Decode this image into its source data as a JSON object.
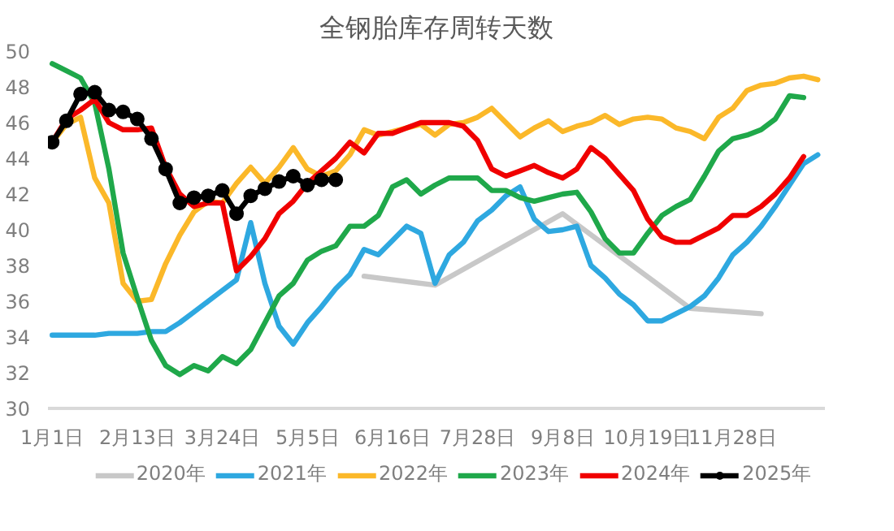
{
  "chart_data": {
    "type": "line",
    "title": "全钢胎库存周转天数",
    "categories": [
      "1月1日",
      null,
      null,
      null,
      null,
      null,
      "2月13日",
      null,
      null,
      null,
      null,
      null,
      "3月24日",
      null,
      null,
      null,
      null,
      null,
      "5月5日",
      null,
      null,
      null,
      null,
      null,
      "6月16日",
      null,
      null,
      null,
      null,
      null,
      "7月28日",
      null,
      null,
      null,
      null,
      null,
      "9月8日",
      null,
      null,
      null,
      null,
      null,
      "10月19日",
      null,
      null,
      null,
      null,
      null,
      "11月28日",
      null,
      null,
      null,
      null,
      null,
      null
    ],
    "ylim": [
      30,
      50
    ],
    "yticks": [
      30,
      32,
      34,
      36,
      38,
      40,
      42,
      44,
      46,
      48,
      50
    ],
    "grid": false,
    "legend": "bottom",
    "marker": "none",
    "line_style": "solid",
    "series": [
      {
        "name": "2020年",
        "color": "#c8c8c8",
        "values": [
          null,
          null,
          null,
          null,
          null,
          null,
          null,
          null,
          null,
          null,
          null,
          null,
          null,
          null,
          null,
          null,
          null,
          null,
          null,
          null,
          null,
          null,
          37.4,
          null,
          null,
          null,
          null,
          36.9,
          null,
          null,
          null,
          null,
          null,
          null,
          null,
          null,
          40.9,
          null,
          null,
          null,
          null,
          null,
          null,
          null,
          null,
          35.6,
          null,
          null,
          null,
          null,
          35.3,
          null,
          null,
          null,
          null
        ]
      },
      {
        "name": "2021年",
        "color": "#2ea8e0",
        "values": [
          34.1,
          34.1,
          34.1,
          34.1,
          34.2,
          34.2,
          34.2,
          34.3,
          34.3,
          34.8,
          35.4,
          36.0,
          36.6,
          37.2,
          40.4,
          37.0,
          34.6,
          33.6,
          34.8,
          35.7,
          36.7,
          37.5,
          38.9,
          38.6,
          39.4,
          40.2,
          39.8,
          37.0,
          38.6,
          39.3,
          40.5,
          41.1,
          41.9,
          42.4,
          40.6,
          39.9,
          40.0,
          40.2,
          38.0,
          37.3,
          36.4,
          35.8,
          34.9,
          34.9,
          35.3,
          35.7,
          36.3,
          37.3,
          38.6,
          39.3,
          40.2,
          41.3,
          42.5,
          43.7,
          44.2
        ]
      },
      {
        "name": "2022年",
        "color": "#fbb829",
        "values": [
          44.9,
          45.9,
          46.3,
          42.9,
          41.5,
          37.0,
          36.0,
          36.1,
          38.1,
          39.7,
          41.0,
          41.6,
          41.5,
          42.6,
          43.5,
          42.6,
          43.5,
          44.6,
          43.4,
          43.0,
          43.3,
          44.2,
          45.6,
          45.3,
          45.5,
          45.7,
          45.9,
          45.3,
          45.9,
          46.0,
          46.3,
          46.8,
          46.0,
          45.2,
          45.7,
          46.1,
          45.5,
          45.8,
          46.0,
          46.4,
          45.9,
          46.2,
          46.3,
          46.2,
          45.7,
          45.5,
          45.1,
          46.3,
          46.8,
          47.8,
          48.1,
          48.2,
          48.5,
          48.6,
          48.4
        ]
      },
      {
        "name": "2023年",
        "color": "#1fa84a",
        "values": [
          49.3,
          48.9,
          48.5,
          47.1,
          43.4,
          38.7,
          36.2,
          33.8,
          32.4,
          31.9,
          32.4,
          32.1,
          32.9,
          32.5,
          33.3,
          34.8,
          36.3,
          37.0,
          38.3,
          38.8,
          39.1,
          40.2,
          40.2,
          40.8,
          42.4,
          42.8,
          42.0,
          42.5,
          42.9,
          42.9,
          42.9,
          42.2,
          42.2,
          41.8,
          41.6,
          41.8,
          42.0,
          42.1,
          41.0,
          39.5,
          38.7,
          38.7,
          39.8,
          40.8,
          41.3,
          41.7,
          43.0,
          44.4,
          45.1,
          45.3,
          45.6,
          46.2,
          47.5,
          47.4,
          null
        ]
      },
      {
        "name": "2024年",
        "color": "#f00000",
        "values": [
          44.9,
          46.2,
          46.7,
          47.3,
          46.0,
          45.6,
          45.6,
          45.7,
          43.5,
          42.0,
          41.3,
          41.5,
          41.5,
          37.7,
          38.5,
          39.5,
          40.9,
          41.6,
          42.6,
          43.3,
          44.0,
          44.9,
          44.3,
          45.4,
          45.4,
          45.7,
          46.0,
          46.0,
          46.0,
          45.8,
          45.0,
          43.4,
          43.0,
          43.3,
          43.6,
          43.2,
          42.9,
          43.4,
          44.6,
          44.0,
          43.1,
          42.2,
          40.6,
          39.6,
          39.3,
          39.3,
          39.7,
          40.1,
          40.8,
          40.8,
          41.3,
          42.0,
          42.9,
          44.1,
          null
        ]
      },
      {
        "name": "2025年",
        "color": "#000000",
        "marker": "circle",
        "values": [
          44.9,
          46.1,
          47.6,
          47.7,
          46.7,
          46.6,
          46.2,
          45.1,
          43.4,
          41.5,
          41.8,
          41.9,
          42.2,
          40.9,
          41.9,
          42.3,
          42.7,
          43.0,
          42.5,
          42.8,
          42.8,
          null,
          null,
          null,
          null,
          null,
          null,
          null,
          null,
          null,
          null,
          null,
          null,
          null,
          null,
          null,
          null,
          null,
          null,
          null,
          null,
          null,
          null,
          null,
          null,
          null,
          null,
          null,
          null,
          null,
          null,
          null,
          null,
          null,
          null
        ]
      }
    ]
  }
}
